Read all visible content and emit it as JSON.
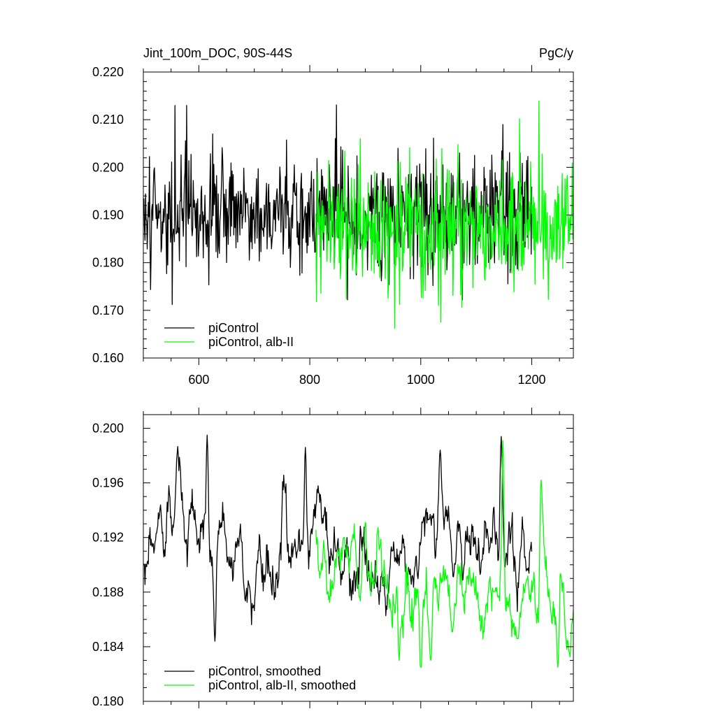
{
  "chart_data": [
    {
      "type": "line",
      "title_left": "Jint_100m_DOC, 90S-44S",
      "title_right": "PgC/y",
      "xlabel": "",
      "ylabel": "",
      "xlim": [
        500,
        1275
      ],
      "ylim": [
        0.16,
        0.22
      ],
      "xticks": [
        600,
        800,
        1000,
        1200
      ],
      "xtick_labels": [
        "600",
        "800",
        "1000",
        "1200"
      ],
      "yticks": [
        0.16,
        0.17,
        0.18,
        0.19,
        0.2,
        0.21,
        0.22
      ],
      "ytick_labels": [
        "0.160",
        "0.170",
        "0.180",
        "0.190",
        "0.200",
        "0.210",
        "0.220"
      ],
      "grid": false,
      "legend_position": "bottom-left",
      "series": [
        {
          "name": "piControl",
          "color": "#000000",
          "x_start": 501,
          "x_step": 1,
          "count": 700,
          "mean": 0.1905,
          "std": 0.0072,
          "range": [
            0.1712,
            0.2131
          ],
          "peaks": [
            [
              552,
              0.1712
            ],
            [
              557,
              0.213
            ],
            [
              578,
              0.213
            ],
            [
              625,
              0.207
            ],
            [
              848,
              0.2131
            ],
            [
              1148,
              0.209
            ]
          ]
        },
        {
          "name": "piControl, alb-II",
          "color": "#00ff00",
          "x_start": 811,
          "x_step": 1,
          "count": 465,
          "mean": 0.188,
          "std": 0.008,
          "range": [
            0.1662,
            0.2139
          ],
          "peaks": [
            [
              953,
              0.1662
            ],
            [
              1036,
              0.1675
            ],
            [
              1213,
              0.2139
            ]
          ]
        }
      ]
    },
    {
      "type": "line",
      "xlim": [
        500,
        1275
      ],
      "ylim": [
        0.18,
        0.201
      ],
      "xticks": [
        600,
        800,
        1000,
        1200
      ],
      "xtick_labels": [
        "",
        "",
        "",
        ""
      ],
      "yticks": [
        0.18,
        0.184,
        0.188,
        0.192,
        0.196,
        0.2
      ],
      "ytick_labels": [
        "0.180",
        "0.184",
        "0.188",
        "0.192",
        "0.196",
        "0.200"
      ],
      "grid": false,
      "legend_position": "bottom-left",
      "series": [
        {
          "name": "piControl, smoothed",
          "color": "#000000",
          "x_start": 501,
          "x_step": 1,
          "count": 700,
          "mean": 0.1912,
          "range": [
            0.1844,
            0.1995
          ],
          "peaks": [
            [
              615,
              0.1995
            ],
            [
              629,
              0.1844
            ],
            [
              792,
              0.1986
            ],
            [
              1145,
              0.1994
            ],
            [
              1035,
              0.1984
            ]
          ]
        },
        {
          "name": "piControl, alb-II, smoothed",
          "color": "#00ff00",
          "x_start": 811,
          "x_step": 1,
          "count": 465,
          "mean": 0.1885,
          "range": [
            0.1825,
            0.1991
          ],
          "peaks": [
            [
              1148,
              0.1991
            ],
            [
              1247,
              0.1825
            ],
            [
              961,
              0.183
            ],
            [
              1000,
              0.182
            ],
            [
              1018,
              0.183
            ],
            [
              1217,
              0.1962
            ]
          ]
        }
      ]
    }
  ]
}
